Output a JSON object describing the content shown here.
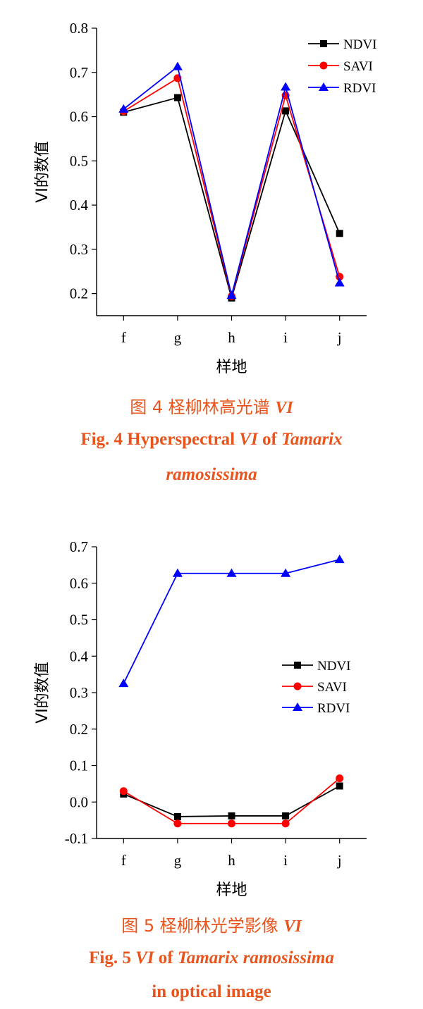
{
  "colors": {
    "NDVI": "#000000",
    "SAVI": "#ff0000",
    "RDVI": "#0000ff",
    "caption": "#e9541c"
  },
  "chart_data": [
    {
      "type": "line",
      "ylabel": "VI的数值",
      "xlabel": "样地",
      "ylim": [
        0.15,
        0.8
      ],
      "yticks": [
        "0.2",
        "0.3",
        "0.4",
        "0.5",
        "0.6",
        "0.7",
        "0.8"
      ],
      "categories": [
        "f",
        "g",
        "h",
        "i",
        "j"
      ],
      "legend_position": "top-right",
      "series": [
        {
          "name": "NDVI",
          "marker": "square",
          "values": [
            0.61,
            0.643,
            0.19,
            0.613,
            0.336
          ]
        },
        {
          "name": "SAVI",
          "marker": "circle",
          "values": [
            0.612,
            0.687,
            0.194,
            0.648,
            0.238
          ]
        },
        {
          "name": "RDVI",
          "marker": "triangle",
          "values": [
            0.617,
            0.713,
            0.196,
            0.667,
            0.224
          ]
        }
      ],
      "caption_cn": {
        "lead": "图 4    柽柳林高光谱 ",
        "vi": "VI"
      },
      "caption_en": {
        "lead": "Fig. 4    Hyperspectral ",
        "vi": "VI",
        "of": " of ",
        "tam": "Tamarix",
        "line2": "ramosissima"
      }
    },
    {
      "type": "line",
      "ylabel": "VI的数值",
      "xlabel": "样地",
      "ylim": [
        -0.1,
        0.7
      ],
      "yticks": [
        "-0.1",
        "0.0",
        "0.1",
        "0.2",
        "0.3",
        "0.4",
        "0.5",
        "0.6",
        "0.7"
      ],
      "categories": [
        "f",
        "g",
        "h",
        "i",
        "j"
      ],
      "legend_position": "center-right",
      "series": [
        {
          "name": "NDVI",
          "marker": "square",
          "values": [
            0.022,
            -0.04,
            -0.038,
            -0.038,
            0.044
          ]
        },
        {
          "name": "SAVI",
          "marker": "circle",
          "values": [
            0.03,
            -0.059,
            -0.059,
            -0.059,
            0.065
          ]
        },
        {
          "name": "RDVI",
          "marker": "triangle",
          "values": [
            0.325,
            0.627,
            0.627,
            0.627,
            0.665
          ]
        }
      ],
      "caption_cn": {
        "lead": "图 5    柽柳林光学影像 ",
        "vi": "VI"
      },
      "caption_en": {
        "lead": "Fig. 5    ",
        "vi": "VI",
        "of": " of ",
        "tam": "Tamarix ramosissima",
        "line2": "in optical image"
      }
    }
  ]
}
